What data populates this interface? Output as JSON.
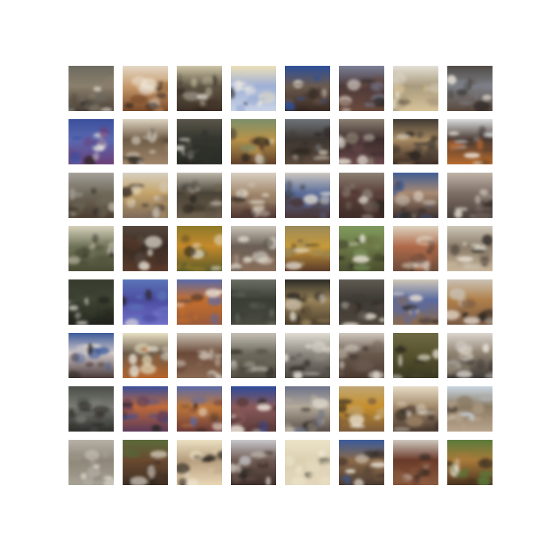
{
  "figure": {
    "rows": 8,
    "cols": 8,
    "samples": [
      {
        "sky": "#6d6a5f",
        "mid": "#8a7f6c",
        "ground": "#4a3f36"
      },
      {
        "sky": "#e3d8c6",
        "mid": "#c79a6b",
        "ground": "#7a4a2a"
      },
      {
        "sky": "#cfc6a8",
        "mid": "#5e5444",
        "ground": "#3d2f25"
      },
      {
        "sky": "#ece0b8",
        "mid": "#9fb0d6",
        "ground": "#c8d2e6"
      },
      {
        "sky": "#2d4f9a",
        "mid": "#6a5a4e",
        "ground": "#3a2a22"
      },
      {
        "sky": "#7b7f95",
        "mid": "#4d3a3a",
        "ground": "#6a4a3c"
      },
      {
        "sky": "#e4e0d6",
        "mid": "#a89a7c",
        "ground": "#d8c39a"
      },
      {
        "sky": "#4f4a45",
        "mid": "#7c7f86",
        "ground": "#5b4a3e"
      },
      {
        "sky": "#3b4f9c",
        "mid": "#5a68b0",
        "ground": "#6b3f78"
      },
      {
        "sky": "#dcd2c0",
        "mid": "#6e5c46",
        "ground": "#a1866a"
      },
      {
        "sky": "#5a554a",
        "mid": "#33352e",
        "ground": "#2a2c26"
      },
      {
        "sky": "#7c8f6a",
        "mid": "#b8934a",
        "ground": "#5e3f2a"
      },
      {
        "sky": "#6e737a",
        "mid": "#3d3631",
        "ground": "#5c4a3c"
      },
      {
        "sky": "#8b7f72",
        "mid": "#3a2b2a",
        "ground": "#6b4a4c"
      },
      {
        "sky": "#3f3a33",
        "mid": "#a88a62",
        "ground": "#3a2a22"
      },
      {
        "sky": "#d9dcdc",
        "mid": "#4a3a33",
        "ground": "#b86a2c"
      },
      {
        "sky": "#a6a19a",
        "mid": "#6f6a5a",
        "ground": "#4c3d30"
      },
      {
        "sky": "#d6cfc1",
        "mid": "#c5a46a",
        "ground": "#7d6a5a"
      },
      {
        "sky": "#bdb8ab",
        "mid": "#4a4337",
        "ground": "#6d5f4e"
      },
      {
        "sky": "#d8cfc2",
        "mid": "#a38a6e",
        "ground": "#4e3530"
      },
      {
        "sky": "#cdc8c0",
        "mid": "#5a6c9a",
        "ground": "#4a3636"
      },
      {
        "sky": "#8b7f74",
        "mid": "#5a4038",
        "ground": "#3e2c28"
      },
      {
        "sky": "#3f5c93",
        "mid": "#a88a72",
        "ground": "#3d2f2c"
      },
      {
        "sky": "#bfb3a6",
        "mid": "#7d6e66",
        "ground": "#4a3f3a"
      },
      {
        "sky": "#d6d0bb",
        "mid": "#6f7358",
        "ground": "#4a4c35"
      },
      {
        "sky": "#56473c",
        "mid": "#3a2d25",
        "ground": "#5a3a2a"
      },
      {
        "sky": "#8e7a2a",
        "mid": "#c58a2a",
        "ground": "#5a5a2a"
      },
      {
        "sky": "#c8c3b8",
        "mid": "#6b5f55",
        "ground": "#8a6e5a"
      },
      {
        "sky": "#9a8a5a",
        "mid": "#c79a3a",
        "ground": "#5a3a2a"
      },
      {
        "sky": "#7f9a5e",
        "mid": "#6e7a48",
        "ground": "#4a4e2f"
      },
      {
        "sky": "#ddd2c0",
        "mid": "#b06a4a",
        "ground": "#6a4a3a"
      },
      {
        "sky": "#cdc6b6",
        "mid": "#8a7c6a",
        "ground": "#c8b59a"
      },
      {
        "sky": "#363a2e",
        "mid": "#3f4535",
        "ground": "#1f211b"
      },
      {
        "sky": "#5a74b8",
        "mid": "#4c4ca0",
        "ground": "#7070c8"
      },
      {
        "sky": "#5a6aa8",
        "mid": "#c7702c",
        "ground": "#9a5a3a"
      },
      {
        "sky": "#6a6e62",
        "mid": "#3a3e36",
        "ground": "#4a4a40"
      },
      {
        "sky": "#2a2a24",
        "mid": "#9a845a",
        "ground": "#4a3e2c"
      },
      {
        "sky": "#5e5a52",
        "mid": "#3e3a34",
        "ground": "#4e463c"
      },
      {
        "sky": "#cfc7b7",
        "mid": "#5a6aa0",
        "ground": "#8a6a4e"
      },
      {
        "sky": "#c9c1b4",
        "mid": "#b0804a",
        "ground": "#7a5a44"
      },
      {
        "sky": "#3c5b9a",
        "mid": "#cfc6c6",
        "ground": "#4a3a3a"
      },
      {
        "sky": "#e9e2c4",
        "mid": "#6a5a48",
        "ground": "#b8642a"
      },
      {
        "sky": "#cbc3b5",
        "mid": "#6b4a3a",
        "ground": "#8a6a52"
      },
      {
        "sky": "#c6c0b6",
        "mid": "#6e6a5c",
        "ground": "#4e4a40"
      },
      {
        "sky": "#e1ddd3",
        "mid": "#8d8880",
        "ground": "#4a4540"
      },
      {
        "sky": "#d1c9bf",
        "mid": "#6a5a4e",
        "ground": "#4a3a30"
      },
      {
        "sky": "#6e6a44",
        "mid": "#58532f",
        "ground": "#3b3a24"
      },
      {
        "sky": "#dcd6cf",
        "mid": "#8e8170",
        "ground": "#3e3a36"
      },
      {
        "sky": "#4a4e48",
        "mid": "#7a7b74",
        "ground": "#2d2d2a"
      },
      {
        "sky": "#3a4e9a",
        "mid": "#c06a3a",
        "ground": "#5a3a5a"
      },
      {
        "sky": "#5a6aa8",
        "mid": "#c0783a",
        "ground": "#6a3a3a"
      },
      {
        "sky": "#2e4a9a",
        "mid": "#8a5a5a",
        "ground": "#5a3a3a"
      },
      {
        "sky": "#6e738a",
        "mid": "#b4aa9a",
        "ground": "#5a4e48"
      },
      {
        "sky": "#bfa674",
        "mid": "#c7902c",
        "ground": "#7a5a3a"
      },
      {
        "sky": "#e6dcc7",
        "mid": "#a48a6a",
        "ground": "#4a3a30"
      },
      {
        "sky": "#c9d6e3",
        "mid": "#8a7a62",
        "ground": "#b8a48c"
      },
      {
        "sky": "#b6b1a7",
        "mid": "#8d8679",
        "ground": "#a5a093"
      },
      {
        "sky": "#5a6a3a",
        "mid": "#6a4a30",
        "ground": "#3e2e22"
      },
      {
        "sky": "#ece0c2",
        "mid": "#b69e7e",
        "ground": "#e8d6b5"
      },
      {
        "sky": "#c8c8cc",
        "mid": "#6e5a52",
        "ground": "#3e2e2a"
      },
      {
        "sky": "#ece3c8",
        "mid": "#dcd0b2",
        "ground": "#e3d6bb"
      },
      {
        "sky": "#3a5a9a",
        "mid": "#8a6a4a",
        "ground": "#4a3a30"
      },
      {
        "sky": "#cfc8bf",
        "mid": "#6a3a2a",
        "ground": "#8a5a3e"
      },
      {
        "sky": "#5a7a3a",
        "mid": "#a87a3a",
        "ground": "#4a3420"
      }
    ]
  }
}
